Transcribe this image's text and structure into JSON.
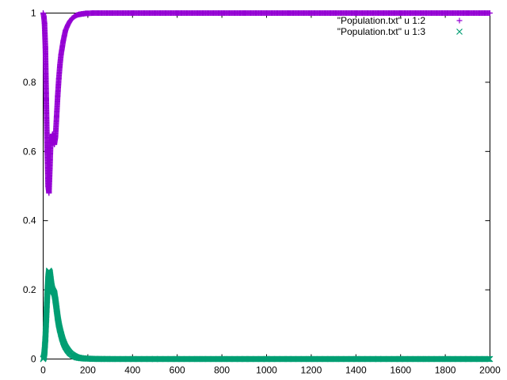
{
  "chart_data": {
    "type": "scatter",
    "title": "",
    "xlabel": "",
    "ylabel": "",
    "xlim": [
      0,
      2000
    ],
    "ylim": [
      0,
      1
    ],
    "grid": false,
    "legend_position": "top-right",
    "x_ticks": [
      "0",
      "200",
      "400",
      "600",
      "800",
      "1000",
      "1200",
      "1400",
      "1600",
      "1800",
      "2000"
    ],
    "y_ticks": [
      "0",
      "0.2",
      "0.4",
      "0.6",
      "0.8",
      "1"
    ],
    "x_tick_values": [
      0,
      200,
      400,
      600,
      800,
      1000,
      1200,
      1400,
      1600,
      1800,
      2000
    ],
    "y_tick_values": [
      0,
      0.2,
      0.4,
      0.6,
      0.8,
      1
    ],
    "series": [
      {
        "name": "\"Population.txt\" u 1:2",
        "marker": "plus",
        "color": "#9400d3",
        "x": [
          0,
          3,
          6,
          10,
          14,
          18,
          22,
          26,
          30,
          34,
          38,
          42,
          46,
          50,
          55,
          60,
          65,
          70,
          75,
          80,
          85,
          90,
          95,
          100,
          110,
          120,
          130,
          140,
          150,
          160,
          170,
          180,
          190,
          200,
          220,
          250,
          300,
          400,
          500,
          600,
          700,
          800,
          900,
          1000,
          1100,
          1200,
          1300,
          1400,
          1500,
          1600,
          1700,
          1800,
          1900,
          2000
        ],
        "y": [
          1.0,
          0.99,
          0.97,
          0.9,
          0.75,
          0.6,
          0.5,
          0.48,
          0.55,
          0.63,
          0.64,
          0.65,
          0.63,
          0.62,
          0.64,
          0.7,
          0.76,
          0.81,
          0.85,
          0.88,
          0.9,
          0.92,
          0.935,
          0.95,
          0.965,
          0.977,
          0.985,
          0.99,
          0.994,
          0.996,
          0.997,
          0.998,
          0.999,
          0.999,
          1.0,
          1.0,
          1.0,
          1.0,
          1.0,
          1.0,
          1.0,
          1.0,
          1.0,
          1.0,
          1.0,
          1.0,
          1.0,
          1.0,
          1.0,
          1.0,
          1.0,
          1.0,
          1.0,
          1.0
        ]
      },
      {
        "name": "\"Population.txt\" u 1:3",
        "marker": "cross",
        "color": "#009e73",
        "x": [
          0,
          3,
          6,
          10,
          14,
          18,
          22,
          26,
          30,
          34,
          38,
          42,
          46,
          50,
          55,
          60,
          65,
          70,
          75,
          80,
          85,
          90,
          95,
          100,
          110,
          120,
          130,
          140,
          150,
          160,
          170,
          180,
          190,
          200,
          220,
          250,
          300,
          400,
          500,
          600,
          700,
          800,
          900,
          1000,
          1100,
          1200,
          1300,
          1400,
          1500,
          1600,
          1700,
          1800,
          1900,
          2000
        ],
        "y": [
          0.0,
          0.005,
          0.02,
          0.06,
          0.12,
          0.18,
          0.23,
          0.255,
          0.25,
          0.23,
          0.21,
          0.2,
          0.195,
          0.19,
          0.17,
          0.145,
          0.12,
          0.1,
          0.085,
          0.072,
          0.06,
          0.05,
          0.042,
          0.035,
          0.025,
          0.017,
          0.012,
          0.008,
          0.005,
          0.0035,
          0.0025,
          0.0018,
          0.0012,
          0.001,
          0.0005,
          0.0002,
          0.0,
          0.0,
          0.0,
          0.0,
          0.0,
          0.0,
          0.0,
          0.0,
          0.0,
          0.0,
          0.0,
          0.0,
          0.0,
          0.0,
          0.0,
          0.0,
          0.0,
          0.0
        ]
      }
    ]
  }
}
